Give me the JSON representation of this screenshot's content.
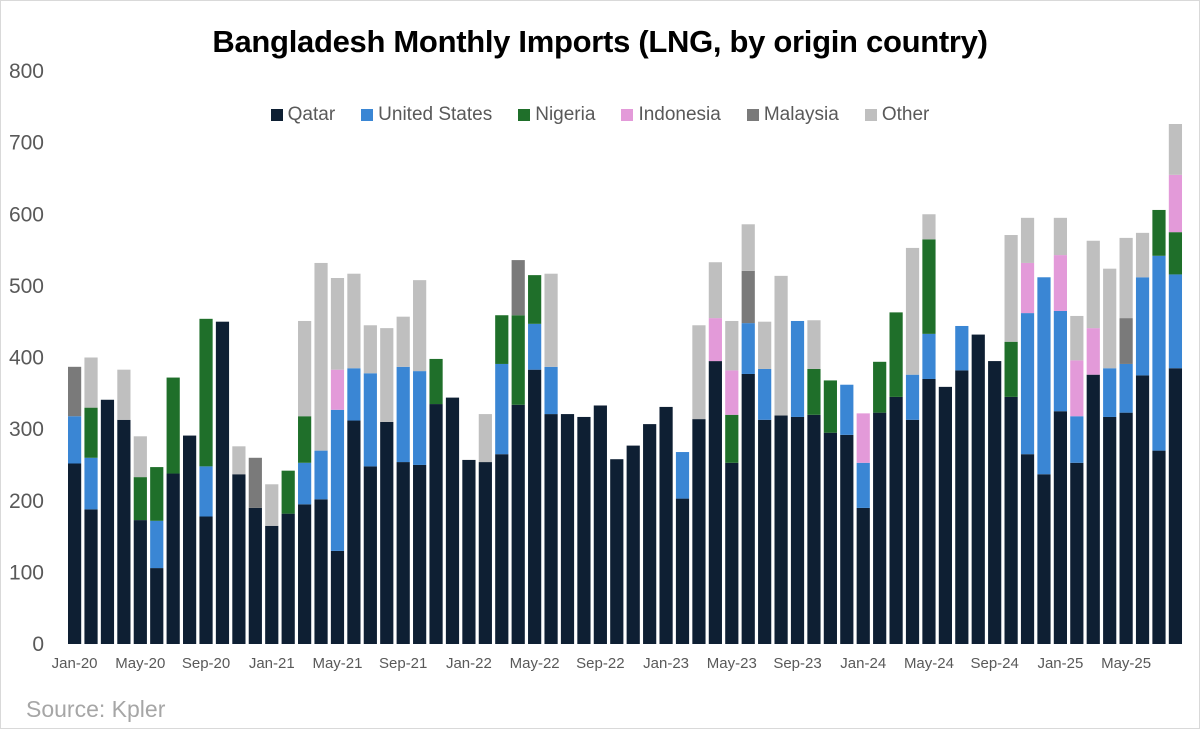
{
  "chart_data": {
    "type": "bar",
    "stacked": true,
    "title": "Bangladesh Monthly Imports (LNG, by origin country)",
    "xlabel": "",
    "ylabel": "",
    "ylim": [
      0,
      800
    ],
    "yticks": [
      0,
      100,
      200,
      300,
      400,
      500,
      600,
      700,
      800
    ],
    "grid": false,
    "legend_position": "top-center",
    "source": "Source: Kpler",
    "xtick_labels": [
      "Jan-20",
      "May-20",
      "Sep-20",
      "Jan-21",
      "May-21",
      "Sep-21",
      "Jan-22",
      "May-22",
      "Sep-22",
      "Jan-23",
      "May-23",
      "Sep-23",
      "Jan-24",
      "May-24",
      "Sep-24",
      "Jan-25",
      "May-25"
    ],
    "categories": [
      "Jan-20",
      "Feb-20",
      "Mar-20",
      "Apr-20",
      "May-20",
      "Jun-20",
      "Jul-20",
      "Aug-20",
      "Sep-20",
      "Oct-20",
      "Nov-20",
      "Dec-20",
      "Jan-21",
      "Feb-21",
      "Mar-21",
      "Apr-21",
      "May-21",
      "Jun-21",
      "Jul-21",
      "Aug-21",
      "Sep-21",
      "Oct-21",
      "Nov-21",
      "Dec-21",
      "Jan-22",
      "Feb-22",
      "Mar-22",
      "Apr-22",
      "May-22",
      "Jun-22",
      "Jul-22",
      "Aug-22",
      "Sep-22",
      "Oct-22",
      "Nov-22",
      "Dec-22",
      "Jan-23",
      "Feb-23",
      "Mar-23",
      "Apr-23",
      "May-23",
      "Jun-23",
      "Jul-23",
      "Aug-23",
      "Sep-23",
      "Oct-23",
      "Nov-23",
      "Dec-23",
      "Jan-24",
      "Feb-24",
      "Mar-24",
      "Apr-24",
      "May-24",
      "Jun-24",
      "Jul-24",
      "Aug-24",
      "Sep-24",
      "Oct-24",
      "Nov-24",
      "Dec-24",
      "Jan-25",
      "Feb-25",
      "Mar-25",
      "Apr-25",
      "May-25",
      "Jun-25",
      "Jul-25",
      "Aug-25"
    ],
    "series": [
      {
        "name": "Qatar",
        "color": "#0e1f33",
        "values": [
          252,
          188,
          341,
          313,
          173,
          106,
          238,
          291,
          178,
          450,
          237,
          190,
          165,
          182,
          195,
          202,
          130,
          312,
          248,
          310,
          254,
          250,
          335,
          344,
          257,
          254,
          265,
          334,
          383,
          321,
          321,
          317,
          333,
          258,
          277,
          307,
          331,
          203,
          314,
          395,
          253,
          377,
          313,
          319,
          317,
          320,
          295,
          292,
          190,
          323,
          345,
          313,
          370,
          359,
          382,
          432,
          395,
          345,
          265,
          237,
          325,
          253,
          376,
          317,
          323,
          375,
          270,
          385
        ]
      },
      {
        "name": "United States",
        "color": "#3a86d4",
        "values": [
          66,
          72,
          0,
          0,
          0,
          66,
          0,
          0,
          70,
          0,
          0,
          0,
          0,
          0,
          58,
          68,
          197,
          73,
          130,
          0,
          133,
          131,
          0,
          0,
          0,
          0,
          126,
          0,
          64,
          66,
          0,
          0,
          0,
          0,
          0,
          0,
          0,
          65,
          0,
          0,
          0,
          71,
          71,
          0,
          134,
          0,
          0,
          70,
          63,
          0,
          0,
          63,
          63,
          0,
          62,
          0,
          0,
          0,
          197,
          275,
          140,
          65,
          0,
          68,
          68,
          137,
          272,
          131
        ]
      },
      {
        "name": "Nigeria",
        "color": "#1f6f2a",
        "values": [
          0,
          70,
          0,
          0,
          60,
          75,
          134,
          0,
          206,
          0,
          0,
          0,
          0,
          60,
          65,
          0,
          0,
          0,
          0,
          0,
          0,
          0,
          63,
          0,
          0,
          0,
          68,
          125,
          68,
          0,
          0,
          0,
          0,
          0,
          0,
          0,
          0,
          0,
          0,
          0,
          67,
          0,
          0,
          0,
          0,
          64,
          73,
          0,
          0,
          71,
          118,
          0,
          132,
          0,
          0,
          0,
          0,
          77,
          0,
          0,
          0,
          0,
          0,
          0,
          0,
          0,
          64,
          59
        ]
      },
      {
        "name": "Indonesia",
        "color": "#e39ad9",
        "values": [
          0,
          0,
          0,
          0,
          0,
          0,
          0,
          0,
          0,
          0,
          0,
          0,
          0,
          0,
          0,
          0,
          56,
          0,
          0,
          0,
          0,
          0,
          0,
          0,
          0,
          0,
          0,
          0,
          0,
          0,
          0,
          0,
          0,
          0,
          0,
          0,
          0,
          0,
          0,
          60,
          62,
          0,
          0,
          0,
          0,
          0,
          0,
          0,
          69,
          0,
          0,
          0,
          0,
          0,
          0,
          0,
          0,
          0,
          70,
          0,
          78,
          78,
          65,
          0,
          0,
          0,
          0,
          80
        ]
      },
      {
        "name": "Malaysia",
        "color": "#7a7a7a",
        "values": [
          69,
          0,
          0,
          0,
          0,
          0,
          0,
          0,
          0,
          0,
          0,
          70,
          0,
          0,
          0,
          0,
          0,
          0,
          0,
          0,
          0,
          0,
          0,
          0,
          0,
          0,
          0,
          77,
          0,
          0,
          0,
          0,
          0,
          0,
          0,
          0,
          0,
          0,
          0,
          0,
          0,
          73,
          0,
          0,
          0,
          0,
          0,
          0,
          0,
          0,
          0,
          0,
          0,
          0,
          0,
          0,
          0,
          0,
          0,
          0,
          0,
          0,
          0,
          0,
          64,
          0,
          0,
          0
        ]
      },
      {
        "name": "Other",
        "color": "#bfbfbf",
        "values": [
          0,
          70,
          0,
          70,
          57,
          0,
          0,
          0,
          0,
          0,
          39,
          0,
          58,
          0,
          133,
          262,
          128,
          132,
          67,
          131,
          70,
          127,
          0,
          0,
          0,
          67,
          0,
          0,
          0,
          130,
          0,
          0,
          0,
          0,
          0,
          0,
          0,
          0,
          131,
          78,
          69,
          65,
          66,
          195,
          0,
          68,
          0,
          0,
          0,
          0,
          0,
          177,
          35,
          0,
          0,
          0,
          0,
          149,
          63,
          0,
          52,
          62,
          122,
          139,
          112,
          62,
          0,
          71
        ]
      }
    ]
  }
}
